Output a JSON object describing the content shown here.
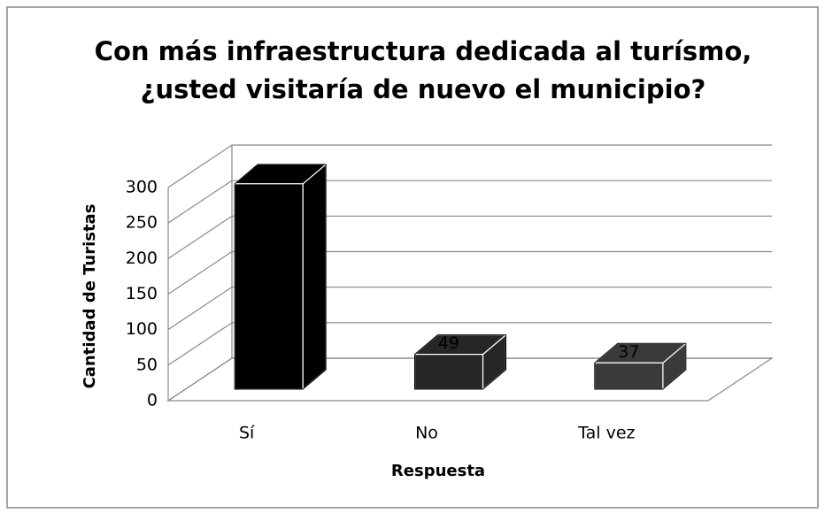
{
  "chart_data": {
    "type": "bar3d",
    "title": [
      "Con más infraestructura dedicada al turísmo,",
      "¿usted visitaría de nuevo el municipio?"
    ],
    "x_label": "Respuesta",
    "y_label": "Cantidad de Turistas",
    "categories": [
      "Sí",
      "No",
      "Tal vez"
    ],
    "values": [
      289,
      49,
      37
    ],
    "colors": [
      "#000000",
      "#262626",
      "#3a3a3a"
    ],
    "ylim": [
      0,
      300
    ],
    "yticks": [
      0,
      50,
      100,
      150,
      200,
      250,
      300
    ],
    "grid": true
  }
}
